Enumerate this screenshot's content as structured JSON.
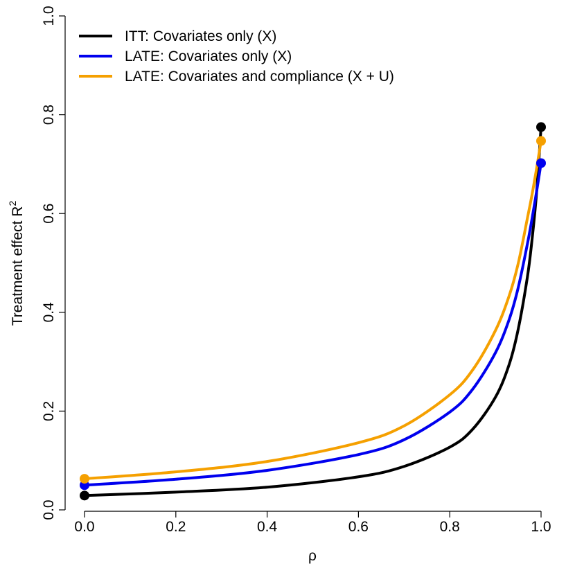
{
  "chart_data": {
    "type": "line",
    "xlabel": "ρ",
    "ylabel": "Treatment effect R",
    "ylabel_superscript": "2",
    "xlim": [
      0.0,
      1.0
    ],
    "ylim": [
      0.0,
      1.0
    ],
    "x_ticks": [
      "0.0",
      "0.2",
      "0.4",
      "0.6",
      "0.8",
      "1.0"
    ],
    "y_ticks": [
      "0.0",
      "0.2",
      "0.4",
      "0.6",
      "0.8",
      "1.0"
    ],
    "grid": false,
    "legend_position": "top-left",
    "series": [
      {
        "name": "ITT: Covariates only (X)",
        "color": "#000000",
        "start_point": {
          "x": 0.0,
          "y": 0.029
        },
        "end_point": {
          "x": 1.0,
          "y": 0.775
        },
        "x": [
          0.0,
          0.2,
          0.4,
          0.6,
          0.7,
          0.8,
          0.85,
          0.9,
          0.93,
          0.95,
          0.97,
          0.98,
          0.99,
          1.0
        ],
        "values": [
          0.029,
          0.036,
          0.046,
          0.067,
          0.088,
          0.127,
          0.163,
          0.228,
          0.294,
          0.366,
          0.471,
          0.545,
          0.64,
          0.775
        ]
      },
      {
        "name": "LATE: Covariates only (X)",
        "color": "#0000ee",
        "start_point": {
          "x": 0.0,
          "y": 0.05
        },
        "end_point": {
          "x": 1.0,
          "y": 0.702
        },
        "x": [
          0.0,
          0.2,
          0.4,
          0.6,
          0.7,
          0.8,
          0.85,
          0.9,
          0.93,
          0.95,
          0.97,
          0.98,
          0.99,
          1.0
        ],
        "values": [
          0.05,
          0.062,
          0.08,
          0.112,
          0.142,
          0.198,
          0.244,
          0.318,
          0.385,
          0.45,
          0.538,
          0.588,
          0.643,
          0.702
        ]
      },
      {
        "name": "LATE: Covariates and compliance (X + U)",
        "color": "#f5a000",
        "start_point": {
          "x": 0.0,
          "y": 0.063
        },
        "end_point": {
          "x": 1.0,
          "y": 0.747
        },
        "x": [
          0.0,
          0.2,
          0.4,
          0.6,
          0.7,
          0.8,
          0.85,
          0.9,
          0.93,
          0.95,
          0.97,
          0.98,
          0.99,
          1.0
        ],
        "values": [
          0.063,
          0.077,
          0.098,
          0.136,
          0.17,
          0.233,
          0.283,
          0.363,
          0.433,
          0.499,
          0.59,
          0.637,
          0.69,
          0.747
        ]
      }
    ]
  }
}
